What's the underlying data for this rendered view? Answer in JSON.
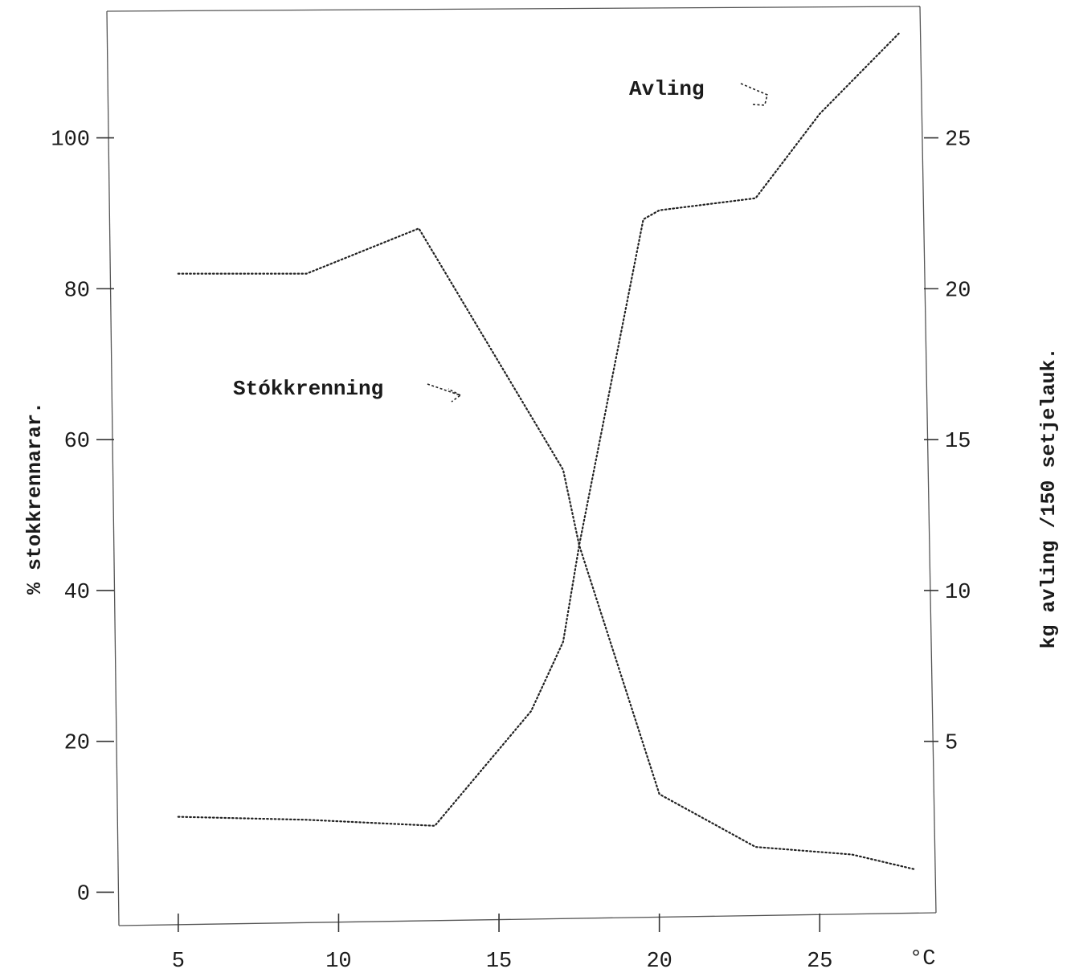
{
  "chart_data": {
    "type": "line",
    "xlabel_unit": "°C",
    "ylabel_left": "% stokkrennarar.",
    "ylabel_right": "kg avling /150 setjelauk.",
    "xlim": [
      3,
      28.5
    ],
    "ylim_left": [
      -4,
      117
    ],
    "ylim_right": [
      -1,
      29.25
    ],
    "x_ticks": [
      5,
      10,
      15,
      20,
      25
    ],
    "y_left_ticks": [
      0,
      20,
      40,
      60,
      80,
      100
    ],
    "y_right_ticks": [
      5,
      10,
      15,
      20,
      25
    ],
    "grid": false,
    "series": [
      {
        "name": "Stokkrenning",
        "axis": "left",
        "x": [
          5,
          9,
          12.5,
          17,
          17.5,
          20,
          23,
          26,
          28
        ],
        "y": [
          82,
          82,
          88,
          56,
          46,
          13,
          6,
          5,
          3
        ]
      },
      {
        "name": "Avling",
        "axis": "right",
        "x": [
          5,
          9,
          13,
          16,
          17,
          17.5,
          19.5,
          20,
          23,
          25,
          27.5
        ],
        "y": [
          2.5,
          2.4,
          2.2,
          6,
          8.3,
          11.5,
          22.3,
          22.6,
          23,
          25.8,
          28.5
        ]
      }
    ],
    "annotations": [
      {
        "text": "Avling",
        "series": "Avling"
      },
      {
        "text": "Stókkrenning",
        "series": "Stokkrenning"
      }
    ]
  }
}
